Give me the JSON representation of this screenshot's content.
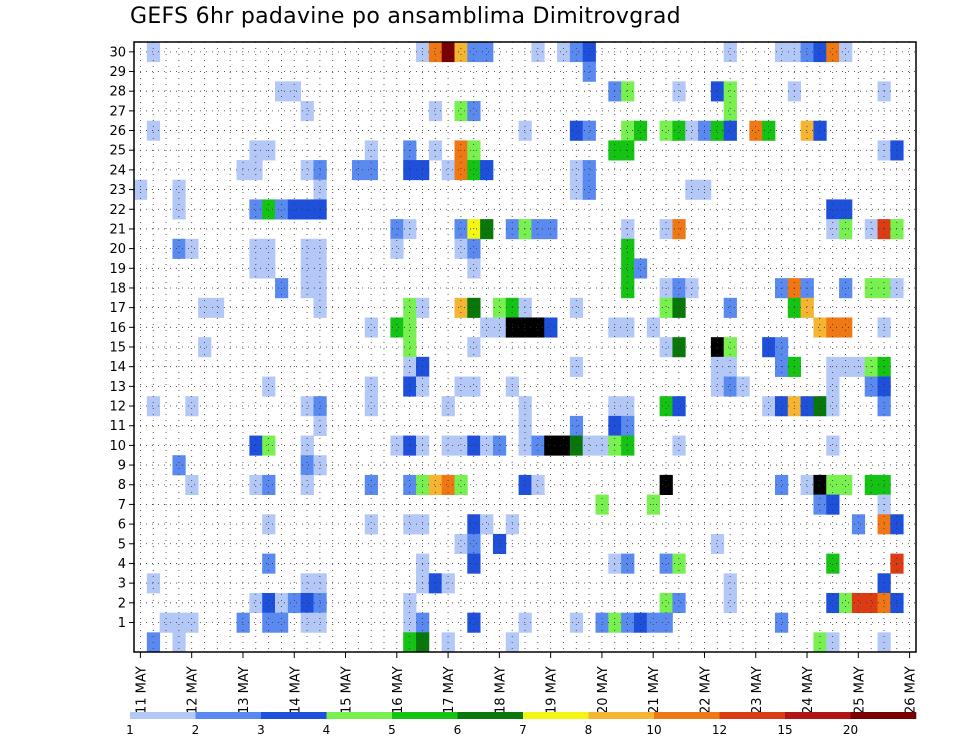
{
  "chart_data": {
    "type": "heatmap",
    "title": "GEFS 6hr padavine po ansamblima Dimitrovgrad",
    "xlabel": "",
    "ylabel": "",
    "x_ticks": [
      "11 MAY",
      "12 MAY",
      "13 MAY",
      "14 MAY",
      "15 MAY",
      "16 MAY",
      "17 MAY",
      "18 MAY",
      "19 MAY",
      "20 MAY",
      "21 MAY",
      "22 MAY",
      "23 MAY",
      "24 MAY",
      "25 MAY",
      "26 MAY"
    ],
    "y_ticks": [
      1,
      2,
      3,
      4,
      5,
      6,
      7,
      8,
      9,
      10,
      11,
      12,
      13,
      14,
      15,
      16,
      17,
      18,
      19,
      20,
      21,
      22,
      23,
      24,
      25,
      26,
      27,
      28,
      29,
      30
    ],
    "steps_per_day": 4,
    "members": 30,
    "grid": true,
    "legend": {
      "placement": "bottom",
      "labels": [
        "1",
        "2",
        "3",
        "4",
        "5",
        "6",
        "7",
        "8",
        "10",
        "12",
        "15",
        "20"
      ],
      "colors": [
        "#b4c8f8",
        "#5a8af0",
        "#1e50dc",
        "#78f050",
        "#14c314",
        "#08780a",
        "#f5f514",
        "#f5b432",
        "#f07814",
        "#dc3c14",
        "#b41414",
        "#780000"
      ]
    },
    "cells": [
      [
        30,
        1,
        1
      ],
      [
        30,
        22,
        1
      ],
      [
        30,
        23,
        9
      ],
      [
        30,
        24,
        12
      ],
      [
        30,
        25,
        8
      ],
      [
        30,
        26,
        2
      ],
      [
        30,
        27,
        2
      ],
      [
        30,
        31,
        1
      ],
      [
        30,
        33,
        1
      ],
      [
        30,
        34,
        2
      ],
      [
        30,
        35,
        3
      ],
      [
        30,
        46,
        1
      ],
      [
        30,
        50,
        1
      ],
      [
        30,
        51,
        1
      ],
      [
        30,
        52,
        2
      ],
      [
        30,
        53,
        3
      ],
      [
        30,
        54,
        9
      ],
      [
        30,
        55,
        1
      ],
      [
        29,
        35,
        2
      ],
      [
        28,
        11,
        1
      ],
      [
        28,
        12,
        1
      ],
      [
        28,
        37,
        2
      ],
      [
        28,
        38,
        4
      ],
      [
        28,
        42,
        1
      ],
      [
        28,
        45,
        3
      ],
      [
        28,
        46,
        4
      ],
      [
        28,
        51,
        1
      ],
      [
        28,
        58,
        1
      ],
      [
        27,
        13,
        1
      ],
      [
        27,
        23,
        1
      ],
      [
        27,
        25,
        4
      ],
      [
        27,
        26,
        2
      ],
      [
        27,
        46,
        4
      ],
      [
        26,
        1,
        1
      ],
      [
        26,
        30,
        1
      ],
      [
        26,
        34,
        3
      ],
      [
        26,
        35,
        2
      ],
      [
        26,
        38,
        4
      ],
      [
        26,
        39,
        5
      ],
      [
        26,
        41,
        4
      ],
      [
        26,
        42,
        5
      ],
      [
        26,
        43,
        1
      ],
      [
        26,
        44,
        2
      ],
      [
        26,
        45,
        5
      ],
      [
        26,
        46,
        3
      ],
      [
        26,
        48,
        9
      ],
      [
        26,
        49,
        5
      ],
      [
        26,
        52,
        8
      ],
      [
        26,
        53,
        3
      ],
      [
        25,
        9,
        1
      ],
      [
        25,
        10,
        1
      ],
      [
        25,
        18,
        1
      ],
      [
        25,
        21,
        2
      ],
      [
        25,
        23,
        1
      ],
      [
        25,
        25,
        9
      ],
      [
        25,
        26,
        4
      ],
      [
        25,
        37,
        5
      ],
      [
        25,
        38,
        5
      ],
      [
        25,
        58,
        1
      ],
      [
        25,
        59,
        3
      ],
      [
        24,
        8,
        1
      ],
      [
        24,
        9,
        1
      ],
      [
        24,
        13,
        1
      ],
      [
        24,
        14,
        2
      ],
      [
        24,
        17,
        2
      ],
      [
        24,
        18,
        2
      ],
      [
        24,
        21,
        3
      ],
      [
        24,
        22,
        3
      ],
      [
        24,
        24,
        1
      ],
      [
        24,
        25,
        9
      ],
      [
        24,
        26,
        5
      ],
      [
        24,
        27,
        3
      ],
      [
        24,
        34,
        1
      ],
      [
        24,
        35,
        2
      ],
      [
        23,
        0,
        1
      ],
      [
        23,
        3,
        1
      ],
      [
        23,
        14,
        1
      ],
      [
        23,
        34,
        1
      ],
      [
        23,
        35,
        2
      ],
      [
        23,
        43,
        1
      ],
      [
        23,
        44,
        1
      ],
      [
        22,
        3,
        1
      ],
      [
        22,
        9,
        2
      ],
      [
        22,
        10,
        5
      ],
      [
        22,
        11,
        2
      ],
      [
        22,
        12,
        3
      ],
      [
        22,
        13,
        3
      ],
      [
        22,
        14,
        3
      ],
      [
        22,
        54,
        3
      ],
      [
        22,
        55,
        3
      ],
      [
        21,
        20,
        2
      ],
      [
        21,
        21,
        1
      ],
      [
        21,
        25,
        2
      ],
      [
        21,
        26,
        7
      ],
      [
        21,
        27,
        6
      ],
      [
        21,
        29,
        2
      ],
      [
        21,
        30,
        4
      ],
      [
        21,
        31,
        2
      ],
      [
        21,
        32,
        2
      ],
      [
        21,
        38,
        1
      ],
      [
        21,
        41,
        1
      ],
      [
        21,
        42,
        9
      ],
      [
        21,
        54,
        1
      ],
      [
        21,
        55,
        4
      ],
      [
        21,
        57,
        1
      ],
      [
        21,
        58,
        10
      ],
      [
        21,
        59,
        4
      ],
      [
        20,
        3,
        2
      ],
      [
        20,
        4,
        1
      ],
      [
        20,
        9,
        1
      ],
      [
        20,
        10,
        1
      ],
      [
        20,
        13,
        1
      ],
      [
        20,
        14,
        1
      ],
      [
        20,
        20,
        1
      ],
      [
        20,
        25,
        1
      ],
      [
        20,
        26,
        2
      ],
      [
        20,
        38,
        5
      ],
      [
        19,
        9,
        1
      ],
      [
        19,
        10,
        1
      ],
      [
        19,
        13,
        1
      ],
      [
        19,
        14,
        1
      ],
      [
        19,
        26,
        1
      ],
      [
        19,
        38,
        5
      ],
      [
        19,
        39,
        2
      ],
      [
        18,
        11,
        2
      ],
      [
        18,
        13,
        1
      ],
      [
        18,
        14,
        1
      ],
      [
        18,
        38,
        5
      ],
      [
        18,
        41,
        1
      ],
      [
        18,
        42,
        2
      ],
      [
        18,
        43,
        1
      ],
      [
        18,
        50,
        2
      ],
      [
        18,
        51,
        9
      ],
      [
        18,
        52,
        2
      ],
      [
        18,
        55,
        2
      ],
      [
        18,
        57,
        4
      ],
      [
        18,
        58,
        4
      ],
      [
        18,
        59,
        1
      ],
      [
        17,
        5,
        1
      ],
      [
        17,
        6,
        1
      ],
      [
        17,
        14,
        1
      ],
      [
        17,
        21,
        4
      ],
      [
        17,
        22,
        1
      ],
      [
        17,
        25,
        8
      ],
      [
        17,
        26,
        6
      ],
      [
        17,
        28,
        4
      ],
      [
        17,
        29,
        5
      ],
      [
        17,
        30,
        1
      ],
      [
        17,
        34,
        1
      ],
      [
        17,
        41,
        4
      ],
      [
        17,
        42,
        6
      ],
      [
        17,
        46,
        2
      ],
      [
        17,
        51,
        5
      ],
      [
        17,
        52,
        8
      ],
      [
        16,
        18,
        1
      ],
      [
        16,
        20,
        5
      ],
      [
        16,
        21,
        4
      ],
      [
        16,
        27,
        1
      ],
      [
        16,
        28,
        1
      ],
      [
        16,
        29,
        14
      ],
      [
        16,
        30,
        15
      ],
      [
        16,
        31,
        14
      ],
      [
        16,
        32,
        3
      ],
      [
        16,
        37,
        1
      ],
      [
        16,
        38,
        1
      ],
      [
        16,
        40,
        1
      ],
      [
        16,
        53,
        8
      ],
      [
        16,
        54,
        9
      ],
      [
        16,
        55,
        9
      ],
      [
        16,
        58,
        1
      ],
      [
        15,
        5,
        1
      ],
      [
        15,
        21,
        4
      ],
      [
        15,
        26,
        1
      ],
      [
        15,
        41,
        1
      ],
      [
        15,
        42,
        6
      ],
      [
        15,
        45,
        13
      ],
      [
        15,
        46,
        4
      ],
      [
        15,
        49,
        3
      ],
      [
        15,
        50,
        2
      ],
      [
        14,
        21,
        1
      ],
      [
        14,
        22,
        3
      ],
      [
        14,
        34,
        1
      ],
      [
        14,
        45,
        1
      ],
      [
        14,
        46,
        1
      ],
      [
        14,
        50,
        2
      ],
      [
        14,
        51,
        5
      ],
      [
        14,
        54,
        1
      ],
      [
        14,
        55,
        1
      ],
      [
        14,
        56,
        1
      ],
      [
        14,
        57,
        4
      ],
      [
        14,
        58,
        5
      ],
      [
        13,
        10,
        1
      ],
      [
        13,
        18,
        1
      ],
      [
        13,
        21,
        3
      ],
      [
        13,
        22,
        1
      ],
      [
        13,
        25,
        1
      ],
      [
        13,
        26,
        1
      ],
      [
        13,
        29,
        1
      ],
      [
        13,
        45,
        1
      ],
      [
        13,
        46,
        2
      ],
      [
        13,
        47,
        1
      ],
      [
        13,
        54,
        1
      ],
      [
        13,
        57,
        2
      ],
      [
        13,
        58,
        3
      ],
      [
        12,
        1,
        1
      ],
      [
        12,
        4,
        1
      ],
      [
        12,
        13,
        1
      ],
      [
        12,
        14,
        2
      ],
      [
        12,
        18,
        1
      ],
      [
        12,
        24,
        1
      ],
      [
        12,
        30,
        1
      ],
      [
        12,
        37,
        1
      ],
      [
        12,
        38,
        1
      ],
      [
        12,
        41,
        5
      ],
      [
        12,
        42,
        3
      ],
      [
        12,
        49,
        1
      ],
      [
        12,
        50,
        3
      ],
      [
        12,
        51,
        8
      ],
      [
        12,
        52,
        3
      ],
      [
        12,
        53,
        6
      ],
      [
        12,
        54,
        1
      ],
      [
        12,
        58,
        2
      ],
      [
        11,
        14,
        1
      ],
      [
        11,
        30,
        1
      ],
      [
        11,
        34,
        2
      ],
      [
        11,
        37,
        3
      ],
      [
        11,
        38,
        2
      ],
      [
        10,
        9,
        3
      ],
      [
        10,
        10,
        4
      ],
      [
        10,
        13,
        1
      ],
      [
        10,
        20,
        1
      ],
      [
        10,
        21,
        3
      ],
      [
        10,
        22,
        1
      ],
      [
        10,
        24,
        1
      ],
      [
        10,
        25,
        1
      ],
      [
        10,
        26,
        3
      ],
      [
        10,
        27,
        1
      ],
      [
        10,
        28,
        2
      ],
      [
        10,
        30,
        1
      ],
      [
        10,
        31,
        2
      ],
      [
        10,
        32,
        14
      ],
      [
        10,
        33,
        14
      ],
      [
        10,
        34,
        6
      ],
      [
        10,
        35,
        1
      ],
      [
        10,
        36,
        1
      ],
      [
        10,
        37,
        4
      ],
      [
        10,
        38,
        5
      ],
      [
        10,
        42,
        1
      ],
      [
        10,
        54,
        1
      ],
      [
        9,
        3,
        2
      ],
      [
        9,
        13,
        2
      ],
      [
        9,
        14,
        1
      ],
      [
        8,
        4,
        1
      ],
      [
        8,
        9,
        1
      ],
      [
        8,
        10,
        2
      ],
      [
        8,
        13,
        1
      ],
      [
        8,
        18,
        2
      ],
      [
        8,
        21,
        2
      ],
      [
        8,
        22,
        4
      ],
      [
        8,
        23,
        8
      ],
      [
        8,
        24,
        9
      ],
      [
        8,
        25,
        4
      ],
      [
        8,
        30,
        3
      ],
      [
        8,
        31,
        1
      ],
      [
        8,
        41,
        15
      ],
      [
        8,
        50,
        2
      ],
      [
        8,
        52,
        1
      ],
      [
        8,
        53,
        13
      ],
      [
        8,
        54,
        4
      ],
      [
        8,
        55,
        4
      ],
      [
        8,
        57,
        5
      ],
      [
        8,
        58,
        5
      ],
      [
        7,
        36,
        4
      ],
      [
        7,
        40,
        4
      ],
      [
        7,
        53,
        2
      ],
      [
        7,
        54,
        3
      ],
      [
        7,
        58,
        1
      ],
      [
        6,
        10,
        1
      ],
      [
        6,
        18,
        1
      ],
      [
        6,
        21,
        1
      ],
      [
        6,
        22,
        1
      ],
      [
        6,
        26,
        3
      ],
      [
        6,
        27,
        1
      ],
      [
        6,
        29,
        1
      ],
      [
        6,
        56,
        2
      ],
      [
        6,
        58,
        9
      ],
      [
        6,
        59,
        3
      ],
      [
        5,
        25,
        1
      ],
      [
        5,
        26,
        2
      ],
      [
        5,
        28,
        3
      ],
      [
        5,
        45,
        1
      ],
      [
        4,
        10,
        2
      ],
      [
        4,
        22,
        1
      ],
      [
        4,
        26,
        3
      ],
      [
        4,
        37,
        1
      ],
      [
        4,
        38,
        2
      ],
      [
        4,
        41,
        2
      ],
      [
        4,
        42,
        4
      ],
      [
        4,
        54,
        5
      ],
      [
        4,
        59,
        10
      ],
      [
        3,
        1,
        1
      ],
      [
        3,
        13,
        1
      ],
      [
        3,
        14,
        1
      ],
      [
        3,
        22,
        1
      ],
      [
        3,
        23,
        3
      ],
      [
        3,
        24,
        1
      ],
      [
        3,
        46,
        1
      ],
      [
        3,
        58,
        3
      ],
      [
        2,
        9,
        1
      ],
      [
        2,
        10,
        3
      ],
      [
        2,
        11,
        1
      ],
      [
        2,
        12,
        2
      ],
      [
        2,
        13,
        3
      ],
      [
        2,
        14,
        2
      ],
      [
        2,
        21,
        1
      ],
      [
        2,
        41,
        4
      ],
      [
        2,
        42,
        2
      ],
      [
        2,
        46,
        1
      ],
      [
        2,
        54,
        3
      ],
      [
        2,
        55,
        4
      ],
      [
        2,
        56,
        10
      ],
      [
        2,
        57,
        10
      ],
      [
        2,
        58,
        9
      ],
      [
        2,
        59,
        3
      ],
      [
        1,
        2,
        1
      ],
      [
        1,
        3,
        1
      ],
      [
        1,
        4,
        1
      ],
      [
        1,
        8,
        2
      ],
      [
        1,
        10,
        2
      ],
      [
        1,
        11,
        2
      ],
      [
        1,
        13,
        1
      ],
      [
        1,
        14,
        1
      ],
      [
        1,
        21,
        1
      ],
      [
        1,
        22,
        2
      ],
      [
        1,
        26,
        3
      ],
      [
        1,
        30,
        1
      ],
      [
        1,
        34,
        1
      ],
      [
        1,
        36,
        2
      ],
      [
        1,
        37,
        4
      ],
      [
        1,
        38,
        2
      ],
      [
        1,
        39,
        3
      ],
      [
        1,
        40,
        2
      ],
      [
        1,
        41,
        2
      ],
      [
        1,
        50,
        2
      ],
      [
        0,
        1,
        2
      ],
      [
        0,
        3,
        1
      ],
      [
        0,
        21,
        5
      ],
      [
        0,
        22,
        6
      ],
      [
        0,
        24,
        1
      ],
      [
        0,
        29,
        1
      ],
      [
        0,
        53,
        4
      ],
      [
        0,
        54,
        1
      ],
      [
        0,
        58,
        1
      ]
    ]
  }
}
